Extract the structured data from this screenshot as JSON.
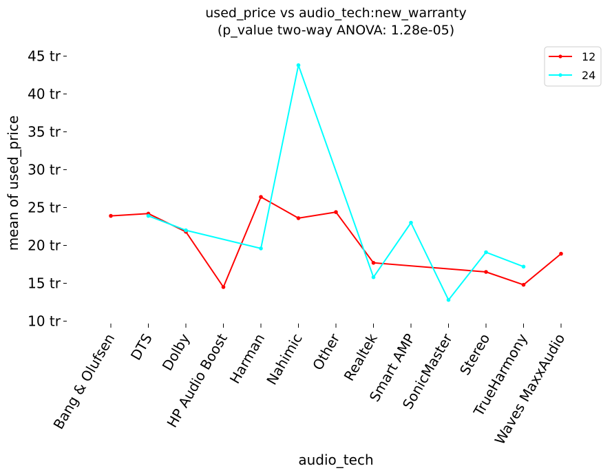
{
  "chart_data": {
    "type": "line",
    "title_line1": "used_price vs audio_tech:new_warranty",
    "title_line2": "(p_value two-way ANOVA: 1.28e-05)",
    "xlabel": "audio_tech",
    "ylabel": "mean of used_price",
    "categories": [
      "Bang & Olufsen",
      "DTS",
      "Dolby",
      "HP Audio Boost",
      "Harman",
      "Nahimic",
      "Other",
      "Realtek",
      "Smart AMP",
      "SonicMaster",
      "Stereo",
      "TrueHarmony",
      "Waves MaxxAudio"
    ],
    "yticks": [
      {
        "value": 10,
        "label": "10 tr"
      },
      {
        "value": 15,
        "label": "15 tr"
      },
      {
        "value": 20,
        "label": "20 tr"
      },
      {
        "value": 25,
        "label": "25 tr"
      },
      {
        "value": 30,
        "label": "30 tr"
      },
      {
        "value": 35,
        "label": "35 tr"
      },
      {
        "value": 40,
        "label": "40 tr"
      },
      {
        "value": 45,
        "label": "45 tr"
      }
    ],
    "ylim": [
      10,
      45
    ],
    "grid": false,
    "legend_position": "top-right",
    "series": [
      {
        "name": "12",
        "color": "#ff0000",
        "values": [
          23.9,
          24.2,
          21.8,
          14.5,
          26.4,
          23.6,
          24.4,
          17.7,
          null,
          null,
          16.5,
          14.8,
          18.9
        ]
      },
      {
        "name": "24",
        "color": "#00ffff",
        "values": [
          null,
          23.9,
          22.0,
          null,
          19.6,
          43.8,
          null,
          15.8,
          23.0,
          12.8,
          19.1,
          17.2,
          null
        ]
      }
    ]
  }
}
